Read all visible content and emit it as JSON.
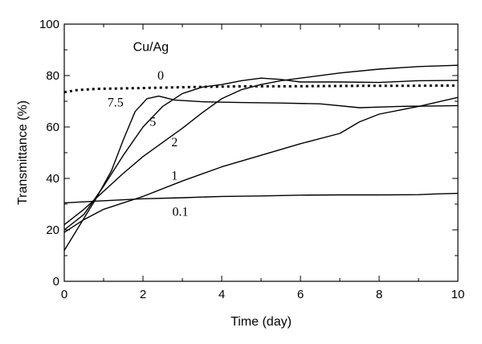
{
  "chart_data": {
    "type": "line",
    "xlabel": "Time (day)",
    "ylabel": "Transmittance (%)",
    "xlim": [
      0,
      10
    ],
    "ylim": [
      0,
      100
    ],
    "x_ticks": [
      "0",
      "2",
      "4",
      "6",
      "8",
      "10"
    ],
    "y_ticks": [
      "0",
      "20",
      "40",
      "60",
      "80",
      "100"
    ],
    "grid": false,
    "legend_title": "Cu/Ag",
    "series": [
      {
        "name": "0",
        "style": "dotted",
        "x": [
          0,
          0.3,
          0.8,
          1.5,
          2.5,
          3.5,
          4.5,
          5.5,
          6.5,
          7.5,
          8.5,
          9.5,
          10
        ],
        "y": [
          73.5,
          74.3,
          74.8,
          75,
          75.3,
          75.6,
          75.8,
          75.8,
          75.9,
          76,
          76,
          76.1,
          76.1
        ]
      },
      {
        "name": "7.5",
        "style": "solid",
        "x": [
          0,
          0.4,
          0.8,
          1.2,
          1.5,
          1.8,
          2.1,
          2.4,
          2.8,
          3.5,
          4.5,
          5.5,
          6.5,
          7.5,
          8.5,
          9.5,
          10
        ],
        "y": [
          12,
          22,
          32,
          43,
          55,
          66,
          71,
          72,
          70.5,
          69.8,
          69.5,
          69.3,
          69,
          67.5,
          68,
          68.2,
          68.3
        ]
      },
      {
        "name": "5",
        "style": "solid",
        "x": [
          0,
          0.5,
          1,
          1.5,
          2,
          2.5,
          3,
          3.5,
          4,
          4.5,
          5,
          5.5,
          6,
          7,
          8,
          9,
          10
        ],
        "y": [
          20,
          26,
          37,
          49,
          60,
          68,
          73,
          75.5,
          76.5,
          78,
          79,
          78.5,
          77.5,
          77.5,
          77.3,
          78,
          78.1
        ]
      },
      {
        "name": "2",
        "style": "solid",
        "x": [
          0,
          0.5,
          1,
          1.5,
          2,
          2.5,
          3,
          3.5,
          4,
          4.5,
          5,
          5.5,
          6,
          7,
          8,
          9,
          10
        ],
        "y": [
          22,
          28,
          35,
          42,
          48.5,
          54,
          59.5,
          65.5,
          71,
          74.5,
          76.5,
          78,
          79,
          81,
          82.5,
          83.5,
          84
        ]
      },
      {
        "name": "1",
        "style": "solid",
        "x": [
          0,
          0.5,
          1,
          2,
          3,
          4,
          5,
          6,
          7,
          7.5,
          8,
          9,
          10
        ],
        "y": [
          19,
          24,
          28,
          33,
          39,
          44.5,
          49,
          53.5,
          57.5,
          62,
          65,
          68,
          71.5
        ]
      },
      {
        "name": "0.1",
        "style": "solid",
        "x": [
          0,
          1,
          2,
          3,
          4,
          5,
          6,
          7,
          8,
          9,
          9.5,
          10
        ],
        "y": [
          30.5,
          31.3,
          32.1,
          32.5,
          33,
          33.2,
          33.5,
          33.6,
          33.6,
          33.7,
          34,
          34.2
        ]
      }
    ],
    "annotations": [
      {
        "text": "0",
        "x": 2.45,
        "y": 78.5
      },
      {
        "text": "7.5",
        "x": 1.3,
        "y": 68
      },
      {
        "text": "5",
        "x": 2.25,
        "y": 60.5
      },
      {
        "text": "2",
        "x": 2.8,
        "y": 52.5
      },
      {
        "text": "1",
        "x": 2.8,
        "y": 39.5
      },
      {
        "text": "0.1",
        "x": 2.95,
        "y": 25.5
      }
    ],
    "legend_title_pos": {
      "x": 2.2,
      "y": 89.5
    }
  }
}
